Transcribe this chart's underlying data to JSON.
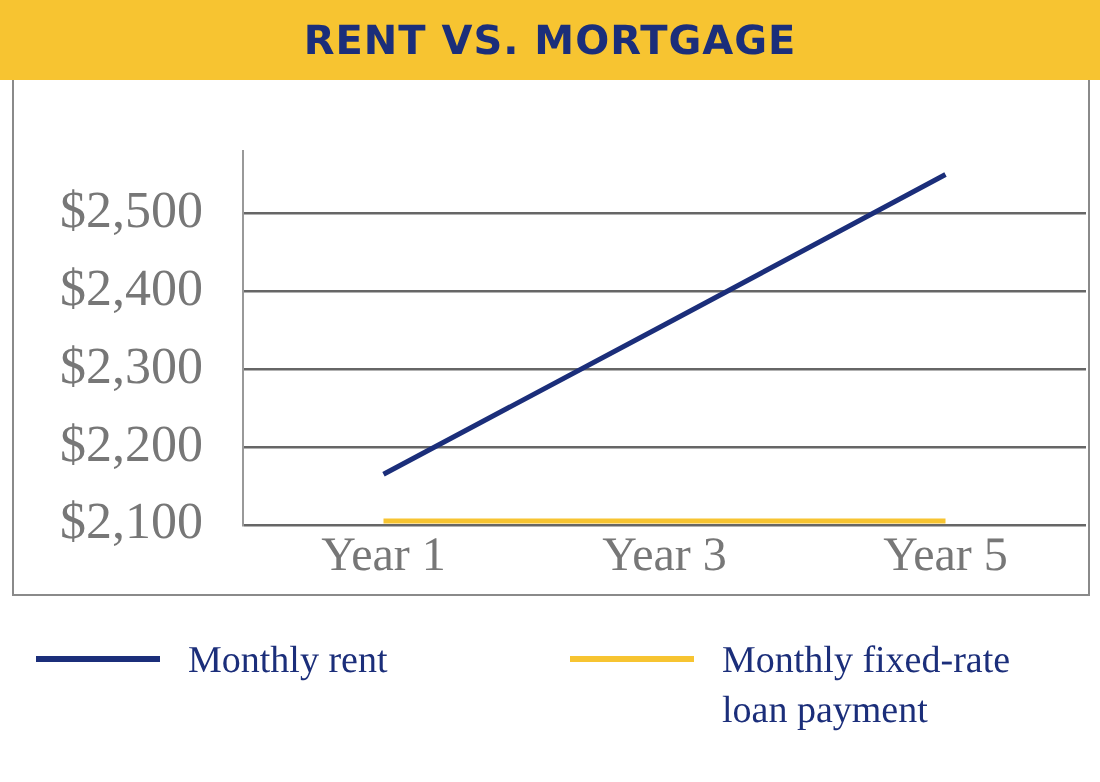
{
  "chart_data": {
    "type": "line",
    "title": "RENT VS. MORTGAGE",
    "categories": [
      "Year 1",
      "Year 3",
      "Year 5"
    ],
    "series": [
      {
        "name": "Monthly rent",
        "color": "#1b2e7a",
        "values": [
          2165,
          2357,
          2550
        ]
      },
      {
        "name": "Monthly fixed-rate loan payment",
        "color": "#f7c431",
        "values": [
          2105,
          2105,
          2105
        ]
      }
    ],
    "ylim": [
      2100,
      2580
    ],
    "yticks": [
      {
        "value": 2100,
        "label": "$2,100"
      },
      {
        "value": 2200,
        "label": "$2,200"
      },
      {
        "value": 2300,
        "label": "$2,300"
      },
      {
        "value": 2400,
        "label": "$2,400"
      },
      {
        "value": 2500,
        "label": "$2,500"
      }
    ],
    "grid": "y",
    "legend": "bottom",
    "marker": "none",
    "line_style": "solid"
  }
}
